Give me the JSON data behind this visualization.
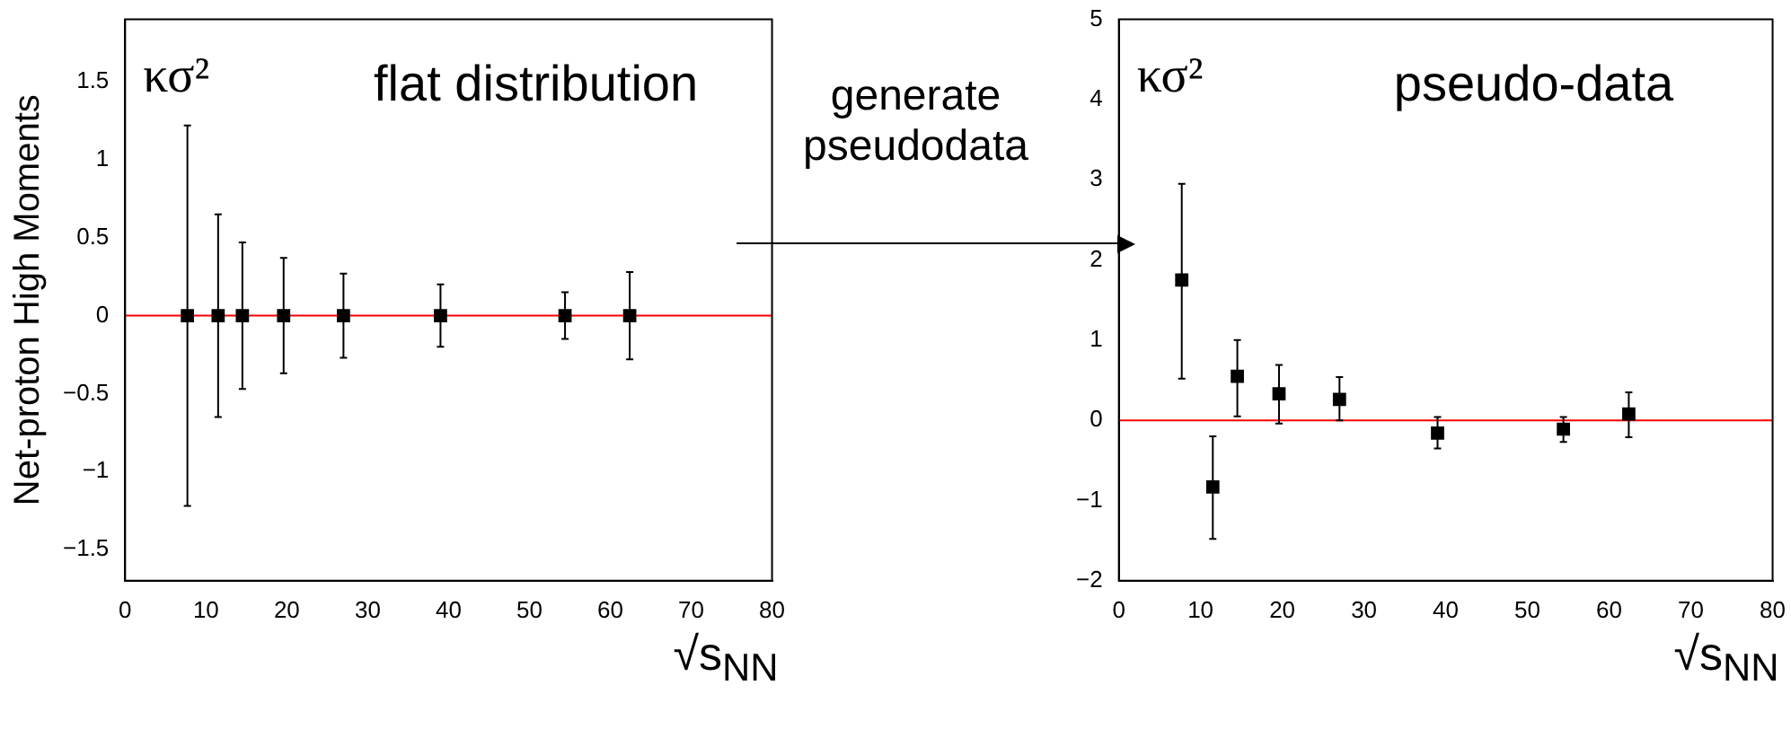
{
  "chart_data": [
    {
      "type": "scatter",
      "ylabel": "Net-proton High Moments",
      "xlabel": "√s$_{NN}$",
      "annotations": [
        "κσ²",
        "flat distribution",
        "generate pseudodata"
      ],
      "x": [
        7.7,
        11.5,
        14.5,
        19.6,
        27,
        39,
        54.4,
        62.4
      ],
      "series": [
        {
          "color": "#000000",
          "values": [
            0,
            0,
            0,
            0,
            0,
            0,
            0,
            0
          ],
          "errors": [
            1.22,
            0.65,
            0.47,
            0.37,
            0.27,
            0.2,
            0.15,
            0.28
          ]
        }
      ],
      "xlim": [
        0,
        80
      ],
      "xticks": [
        0,
        10,
        20,
        30,
        40,
        50,
        60,
        70,
        80
      ],
      "ylim": [
        -1.7,
        1.9
      ],
      "yticks": [
        -1.5,
        -1,
        -0.5,
        0,
        0.5,
        1,
        1.5
      ],
      "ref_lines": [
        {
          "axis": "y",
          "value": 0,
          "color": "#ff0000"
        }
      ],
      "marker": "square",
      "grid": false,
      "legend": false
    },
    {
      "type": "scatter",
      "xlabel": "√s$_{NN}$",
      "annotations": [
        "κσ²",
        "pseudo-data"
      ],
      "x": [
        7.7,
        11.5,
        14.5,
        19.6,
        27,
        39,
        54.4,
        62.4
      ],
      "series": [
        {
          "color": "#000000",
          "values": [
            1.75,
            -0.83,
            0.55,
            0.33,
            0.26,
            -0.16,
            -0.11,
            0.08
          ],
          "errors": [
            [
              0.52,
              2.95
            ],
            [
              -1.48,
              -0.2
            ],
            [
              0.05,
              1.0
            ],
            [
              -0.04,
              0.69
            ],
            [
              0,
              0.54
            ],
            [
              -0.35,
              0.04
            ],
            [
              -0.27,
              0.04
            ],
            [
              -0.21,
              0.35
            ]
          ]
        }
      ],
      "xlim": [
        0,
        80
      ],
      "xticks": [
        0,
        10,
        20,
        30,
        40,
        50,
        60,
        70,
        80
      ],
      "ylim": [
        -2,
        5
      ],
      "yticks": [
        -2,
        -1,
        0,
        1,
        2,
        3,
        4,
        5
      ],
      "ref_lines": [
        {
          "axis": "y",
          "value": 0,
          "color": "#ff0000"
        }
      ],
      "marker": "square",
      "grid": false,
      "legend": false
    }
  ]
}
